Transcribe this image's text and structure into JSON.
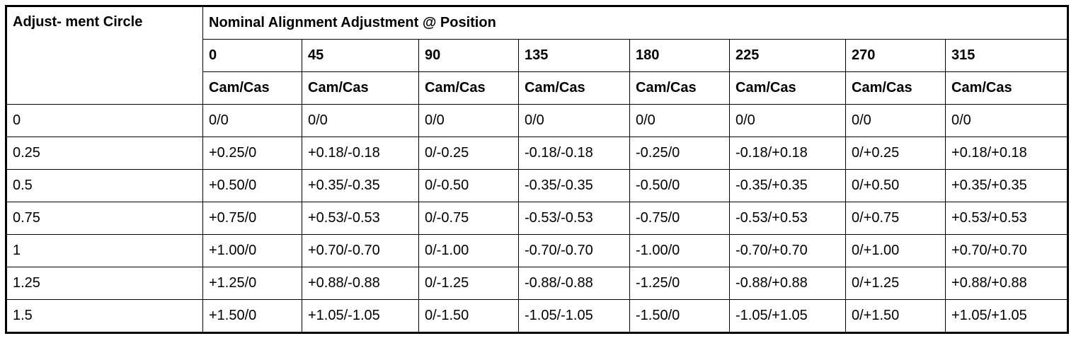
{
  "table": {
    "header": {
      "corner": "Adjust- ment Circle",
      "group": "Nominal Alignment Adjustment @ Position",
      "positions": [
        "0",
        "45",
        "90",
        "135",
        "180",
        "225",
        "270",
        "315"
      ],
      "units": [
        "Cam/Cas",
        "Cam/Cas",
        "Cam/Cas",
        "Cam/Cas",
        "Cam/Cas",
        "Cam/Cas",
        "Cam/Cas",
        "Cam/Cas"
      ]
    },
    "rows": [
      [
        "0",
        "0/0",
        "0/0",
        "0/0",
        "0/0",
        "0/0",
        "0/0",
        "0/0",
        "0/0"
      ],
      [
        "0.25",
        "+0.25/0",
        "+0.18/-0.18",
        "0/-0.25",
        "-0.18/-0.18",
        "-0.25/0",
        "-0.18/+0.18",
        "0/+0.25",
        "+0.18/+0.18"
      ],
      [
        "0.5",
        "+0.50/0",
        "+0.35/-0.35",
        "0/-0.50",
        "-0.35/-0.35",
        "-0.50/0",
        "-0.35/+0.35",
        "0/+0.50",
        "+0.35/+0.35"
      ],
      [
        "0.75",
        "+0.75/0",
        "+0.53/-0.53",
        "0/-0.75",
        "-0.53/-0.53",
        "-0.75/0",
        "-0.53/+0.53",
        "0/+0.75",
        "+0.53/+0.53"
      ],
      [
        "1",
        "+1.00/0",
        "+0.70/-0.70",
        "0/-1.00",
        "-0.70/-0.70",
        "-1.00/0",
        "-0.70/+0.70",
        "0/+1.00",
        "+0.70/+0.70"
      ],
      [
        "1.25",
        "+1.25/0",
        "+0.88/-0.88",
        "0/-1.25",
        "-0.88/-0.88",
        "-1.25/0",
        "-0.88/+0.88",
        "0/+1.25",
        "+0.88/+0.88"
      ],
      [
        "1.5",
        "+1.50/0",
        "+1.05/-1.05",
        "0/-1.50",
        "-1.05/-1.05",
        "-1.50/0",
        "-1.05/+1.05",
        "0/+1.50",
        "+1.05/+1.05"
      ]
    ]
  }
}
